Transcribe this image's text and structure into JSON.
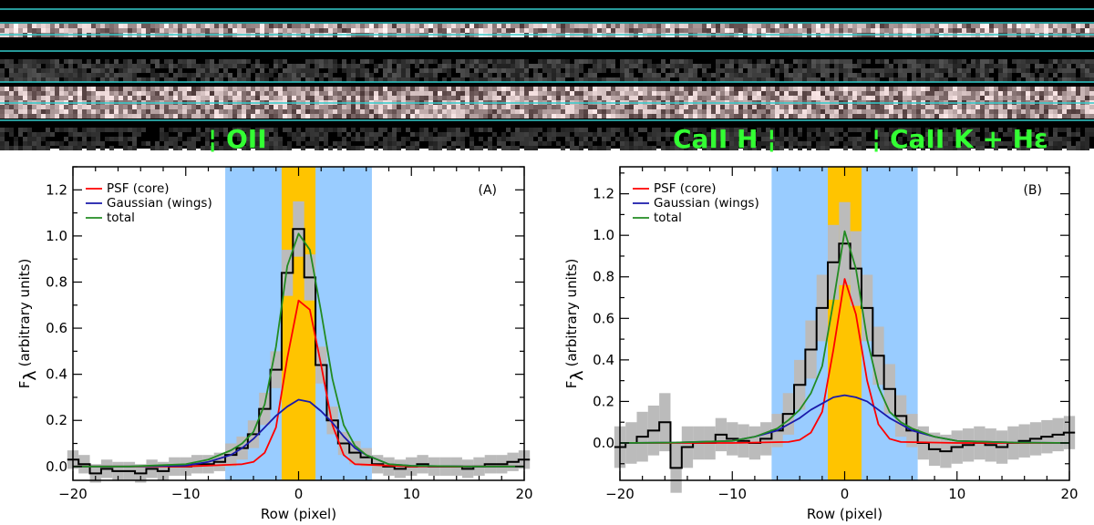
{
  "spectrum": {
    "labels": [
      {
        "prefix": "¦",
        "text": "OII",
        "suffix": ""
      },
      {
        "prefix": "",
        "text": "CaII H",
        "suffix": "¦"
      },
      {
        "prefix": "¦",
        "text": "CaII K + Hε",
        "suffix": ""
      }
    ],
    "label_color": "#33ff33",
    "guide_line_color": "#33cccc"
  },
  "colors": {
    "band_wide": "#99ccff",
    "band_core": "#ffc400",
    "error_band": "#bbbbbb",
    "data": "#000000",
    "psf": "#ff0000",
    "gaussian": "#1a1aaa",
    "total": "#228b22"
  },
  "legend": [
    "PSF (core)",
    "Gaussian (wings)",
    "total"
  ],
  "chart_data": [
    {
      "type": "line",
      "panel_label": "(A)",
      "xlabel": "Row (pixel)",
      "ylabel": "F",
      "ylabel_sub": "λ",
      "ylabel_unit": "(arbitrary units)",
      "xlim": [
        -20,
        20
      ],
      "ylim": [
        -0.06,
        1.3
      ],
      "xticks": [
        -20,
        -10,
        0,
        10,
        20
      ],
      "yticks": [
        0.0,
        0.2,
        0.4,
        0.6,
        0.8,
        1.0,
        1.2
      ],
      "ytick_labels": [
        "0.0",
        "0.2",
        "0.4",
        "0.6",
        "0.8",
        "1.0",
        "1.2"
      ],
      "bands": [
        {
          "from": -6.5,
          "to": 6.5,
          "kind": "wide"
        },
        {
          "from": -1.5,
          "to": 1.5,
          "kind": "core"
        }
      ],
      "data": {
        "x": [
          -20,
          -19,
          -18,
          -17,
          -16,
          -15,
          -14,
          -13,
          -12,
          -11,
          -10,
          -9,
          -8,
          -7,
          -6,
          -5,
          -4,
          -3,
          -2,
          -1,
          0,
          1,
          2,
          3,
          4,
          5,
          6,
          7,
          8,
          9,
          10,
          11,
          12,
          13,
          14,
          15,
          16,
          17,
          18,
          19,
          20
        ],
        "y": [
          0.03,
          0.01,
          -0.03,
          -0.01,
          -0.02,
          -0.02,
          -0.03,
          -0.01,
          -0.02,
          0.0,
          0.0,
          0.01,
          0.01,
          0.02,
          0.05,
          0.08,
          0.14,
          0.25,
          0.42,
          0.84,
          1.03,
          0.82,
          0.44,
          0.2,
          0.1,
          0.06,
          0.04,
          0.01,
          0.0,
          -0.01,
          0.0,
          0.01,
          0.0,
          0.0,
          0.0,
          -0.01,
          0.0,
          0.01,
          0.01,
          0.02,
          0.03
        ],
        "err": [
          0.04,
          0.04,
          0.04,
          0.04,
          0.04,
          0.04,
          0.04,
          0.04,
          0.04,
          0.04,
          0.04,
          0.04,
          0.04,
          0.04,
          0.05,
          0.05,
          0.06,
          0.07,
          0.08,
          0.1,
          0.12,
          0.1,
          0.08,
          0.06,
          0.05,
          0.05,
          0.04,
          0.04,
          0.04,
          0.04,
          0.04,
          0.04,
          0.04,
          0.04,
          0.04,
          0.04,
          0.04,
          0.04,
          0.04,
          0.04,
          0.04
        ]
      },
      "series": [
        {
          "name": "PSF (core)",
          "x": [
            -20,
            -10,
            -5,
            -4,
            -3,
            -2,
            -1,
            0,
            1,
            2,
            3,
            4,
            5,
            10,
            20
          ],
          "y": [
            0,
            0,
            0.01,
            0.02,
            0.06,
            0.17,
            0.47,
            0.72,
            0.68,
            0.44,
            0.18,
            0.05,
            0.01,
            0,
            0
          ]
        },
        {
          "name": "Gaussian (wings)",
          "x": [
            -20,
            -15,
            -10,
            -8,
            -6,
            -5,
            -4,
            -3,
            -2,
            -1,
            0,
            1,
            2,
            3,
            4,
            5,
            6,
            8,
            10,
            15,
            20
          ],
          "y": [
            0,
            0,
            0.004,
            0.02,
            0.05,
            0.08,
            0.12,
            0.17,
            0.22,
            0.26,
            0.29,
            0.28,
            0.24,
            0.19,
            0.13,
            0.08,
            0.05,
            0.01,
            0.003,
            0,
            0
          ]
        },
        {
          "name": "total",
          "x": [
            -20,
            -15,
            -10,
            -8,
            -6,
            -5,
            -4,
            -3,
            -2,
            -1,
            0,
            1,
            2,
            3,
            4,
            5,
            6,
            8,
            10,
            15,
            20
          ],
          "y": [
            0,
            0,
            0.01,
            0.03,
            0.07,
            0.1,
            0.15,
            0.27,
            0.52,
            0.87,
            1.01,
            0.94,
            0.67,
            0.38,
            0.18,
            0.09,
            0.05,
            0.01,
            0.003,
            0,
            0
          ]
        }
      ]
    },
    {
      "type": "line",
      "panel_label": "(B)",
      "xlabel": "Row (pixel)",
      "ylabel": "F",
      "ylabel_sub": "λ",
      "ylabel_unit": "(arbitrary units)",
      "xlim": [
        -20,
        20
      ],
      "ylim": [
        -0.18,
        1.33
      ],
      "xticks": [
        -20,
        -10,
        0,
        10,
        20
      ],
      "yticks": [
        0.0,
        0.2,
        0.4,
        0.6,
        0.8,
        1.0,
        1.2
      ],
      "ytick_labels": [
        "0.0",
        "0.2",
        "0.4",
        "0.6",
        "0.8",
        "1.0",
        "1.2"
      ],
      "bands": [
        {
          "from": -6.5,
          "to": 6.5,
          "kind": "wide"
        },
        {
          "from": -1.5,
          "to": 1.5,
          "kind": "core"
        }
      ],
      "data": {
        "x": [
          -20,
          -19,
          -18,
          -17,
          -16,
          -15,
          -14,
          -13,
          -12,
          -11,
          -10,
          -9,
          -8,
          -7,
          -6,
          -5,
          -4,
          -3,
          -2,
          -1,
          0,
          1,
          2,
          3,
          4,
          5,
          6,
          7,
          8,
          9,
          10,
          11,
          12,
          13,
          14,
          15,
          16,
          17,
          18,
          19,
          20
        ],
        "y": [
          -0.02,
          0.0,
          0.03,
          0.06,
          0.1,
          -0.12,
          -0.02,
          0.0,
          0.0,
          0.04,
          0.02,
          0.01,
          0.0,
          0.02,
          0.06,
          0.14,
          0.28,
          0.45,
          0.65,
          0.87,
          0.96,
          0.84,
          0.65,
          0.42,
          0.26,
          0.13,
          0.06,
          0.0,
          -0.03,
          -0.04,
          -0.02,
          -0.01,
          0.0,
          -0.01,
          -0.02,
          0.0,
          0.01,
          0.02,
          0.03,
          0.04,
          0.05
        ],
        "err": [
          0.1,
          0.1,
          0.12,
          0.12,
          0.14,
          0.12,
          0.1,
          0.08,
          0.08,
          0.08,
          0.08,
          0.08,
          0.08,
          0.08,
          0.08,
          0.1,
          0.12,
          0.14,
          0.16,
          0.18,
          0.2,
          0.18,
          0.16,
          0.14,
          0.12,
          0.1,
          0.08,
          0.08,
          0.08,
          0.08,
          0.08,
          0.08,
          0.08,
          0.08,
          0.08,
          0.08,
          0.08,
          0.08,
          0.08,
          0.08,
          0.08
        ]
      },
      "series": [
        {
          "name": "PSF (core)",
          "x": [
            -20,
            -10,
            -5,
            -4,
            -3,
            -2,
            -1,
            0,
            1,
            2,
            3,
            4,
            5,
            10,
            20
          ],
          "y": [
            0,
            0,
            0.005,
            0.015,
            0.05,
            0.15,
            0.45,
            0.79,
            0.62,
            0.3,
            0.09,
            0.02,
            0.005,
            0,
            0
          ]
        },
        {
          "name": "Gaussian (wings)",
          "x": [
            -20,
            -15,
            -10,
            -8,
            -6,
            -5,
            -4,
            -3,
            -2,
            -1,
            0,
            1,
            2,
            3,
            4,
            5,
            6,
            8,
            10,
            15,
            20
          ],
          "y": [
            0,
            0.002,
            0.01,
            0.03,
            0.06,
            0.09,
            0.12,
            0.16,
            0.19,
            0.22,
            0.23,
            0.22,
            0.2,
            0.16,
            0.12,
            0.09,
            0.06,
            0.03,
            0.01,
            0.002,
            0
          ]
        },
        {
          "name": "total",
          "x": [
            -20,
            -15,
            -10,
            -8,
            -6,
            -5,
            -4,
            -3,
            -2,
            -1,
            0,
            1,
            2,
            3,
            4,
            5,
            6,
            8,
            10,
            15,
            20
          ],
          "y": [
            0,
            0.002,
            0.01,
            0.03,
            0.07,
            0.11,
            0.16,
            0.24,
            0.37,
            0.68,
            1.02,
            0.84,
            0.5,
            0.27,
            0.15,
            0.1,
            0.07,
            0.03,
            0.01,
            0.002,
            0
          ]
        }
      ]
    }
  ]
}
